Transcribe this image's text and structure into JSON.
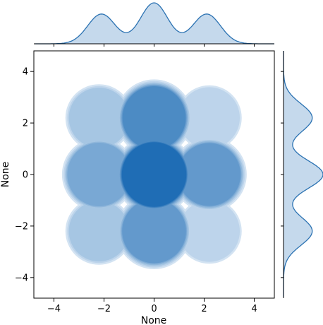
{
  "chart_data": {
    "type": "kde-jointplot",
    "xlabel": "None",
    "ylabel": "None",
    "xlim": [
      -4.8,
      4.8
    ],
    "ylim": [
      -4.8,
      4.8
    ],
    "x_ticks": [
      -4,
      -2,
      0,
      2,
      4
    ],
    "y_ticks": [
      -4,
      -2,
      0,
      2,
      4
    ],
    "x_tick_labels": [
      "−4",
      "−2",
      "0",
      "2",
      "4"
    ],
    "y_tick_labels": [
      "−4",
      "−2",
      "0",
      "2",
      "4"
    ],
    "grid": false,
    "cluster_centers": [
      {
        "x": -2.2,
        "y": 2.2,
        "density": 0.35
      },
      {
        "x": 0.0,
        "y": 2.2,
        "density": 0.75
      },
      {
        "x": 2.2,
        "y": 2.2,
        "density": 0.3
      },
      {
        "x": -2.2,
        "y": 0.0,
        "density": 0.6
      },
      {
        "x": 0.0,
        "y": 0.0,
        "density": 1.0
      },
      {
        "x": 2.2,
        "y": 0.0,
        "density": 0.65
      },
      {
        "x": -2.2,
        "y": -2.2,
        "density": 0.35
      },
      {
        "x": 0.0,
        "y": -2.2,
        "density": 0.7
      },
      {
        "x": 2.2,
        "y": -2.2,
        "density": 0.3
      }
    ],
    "marginal_x_peaks": [
      -2.1,
      0.0,
      2.1
    ],
    "marginal_y_peaks": [
      -2.2,
      0.0,
      2.2
    ],
    "colors": {
      "fill_light": "#eaf2fa",
      "fill_dark": "#1f6db5",
      "marginal_fill": "#c5d9ec",
      "marginal_line": "#2b72b2",
      "axis": "#000000"
    }
  }
}
